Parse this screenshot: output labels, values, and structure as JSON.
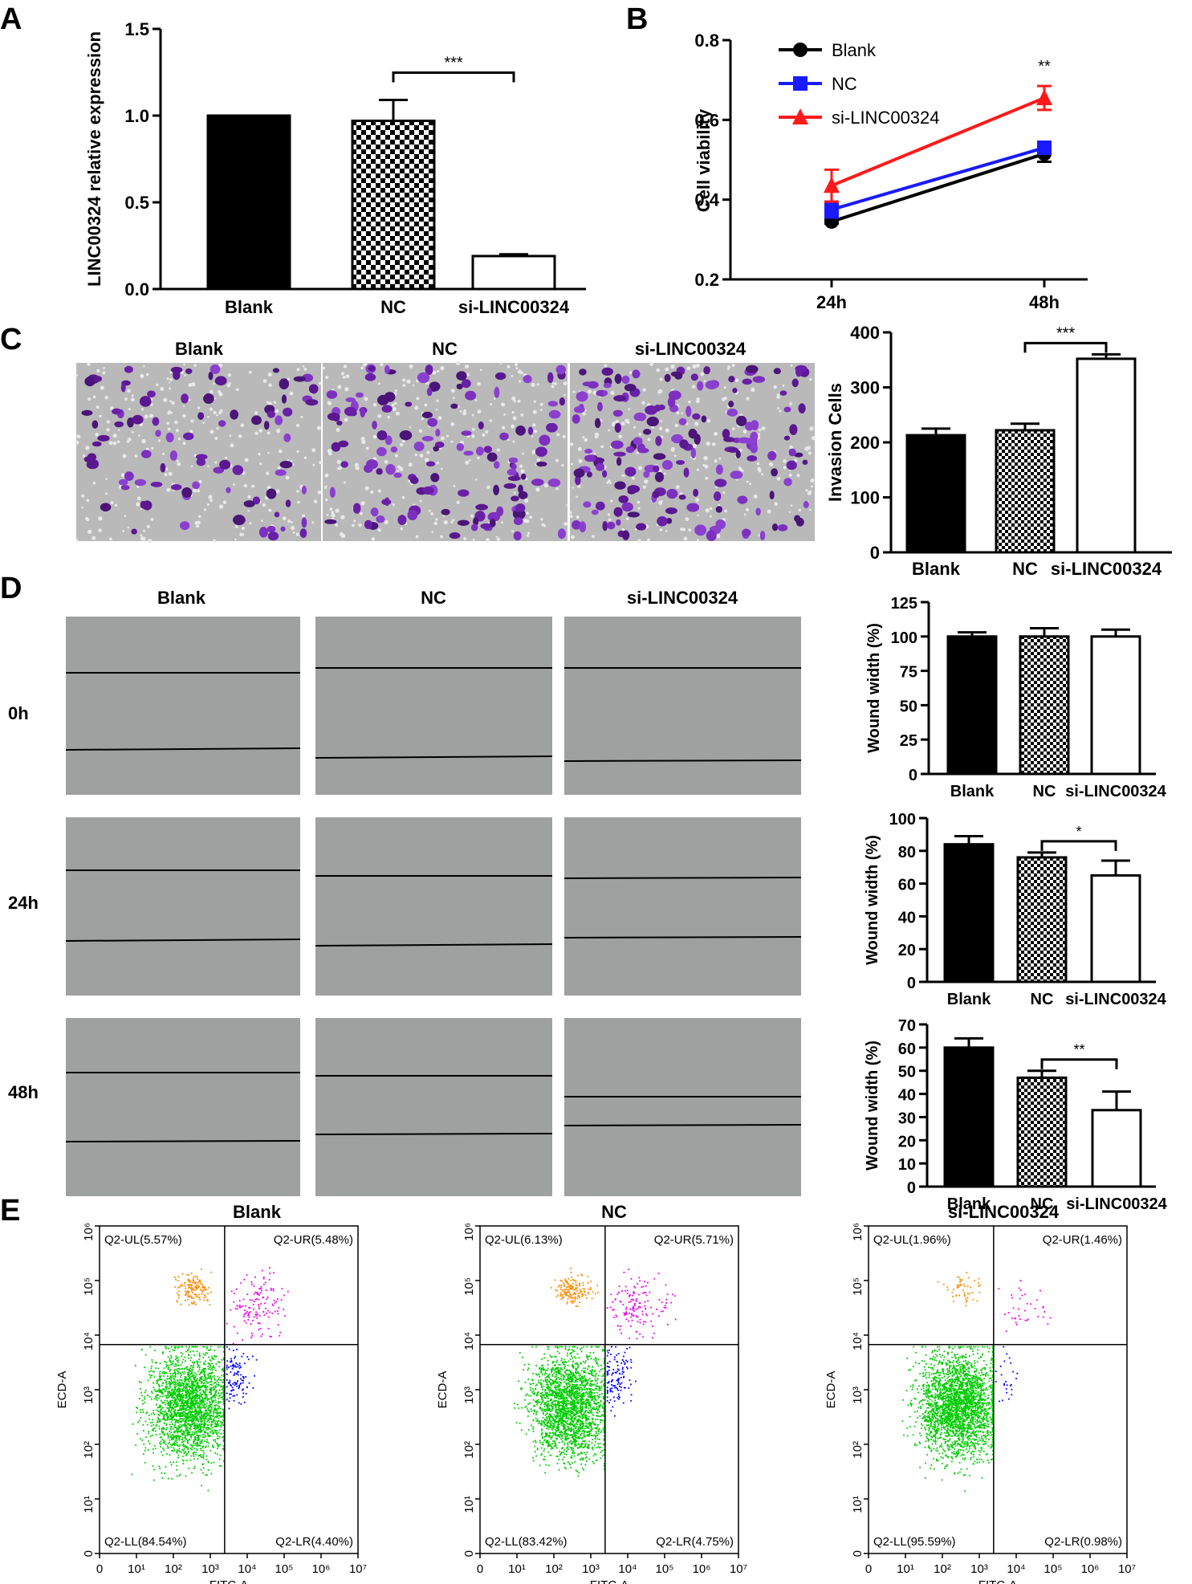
{
  "panels": {
    "A": "A",
    "B": "B",
    "C": "C",
    "D": "D",
    "E": "E"
  },
  "chart_data": [
    {
      "id": "A",
      "type": "bar",
      "categories": [
        "Blank",
        "NC",
        "si-LINC00324"
      ],
      "values": [
        1.0,
        0.97,
        0.19
      ],
      "errors": [
        0,
        0.12,
        0.01
      ],
      "patterns": [
        "solid",
        "checker",
        "open"
      ],
      "ylabel": "LINC00324 relative expression",
      "ylim": [
        0,
        1.5
      ],
      "yticks": [
        "0.0",
        "0.5",
        "1.0",
        "1.5"
      ],
      "significance": [
        {
          "from": 1,
          "to": 2,
          "label": "***"
        }
      ]
    },
    {
      "id": "B",
      "type": "line",
      "categories": [
        "24h",
        "48h"
      ],
      "ylabel": "Cell viability",
      "ylim": [
        0.2,
        0.8
      ],
      "yticks": [
        "0.2",
        "0.4",
        "0.6",
        "0.8"
      ],
      "legend_position": "top-left",
      "series": [
        {
          "name": "Blank",
          "color": "#000000",
          "marker": "circle",
          "values": [
            0.345,
            0.515
          ],
          "errors": [
            0.005,
            0.02
          ]
        },
        {
          "name": "NC",
          "color": "#1a1aff",
          "marker": "square",
          "values": [
            0.375,
            0.53
          ],
          "errors": [
            0.02,
            0.015
          ]
        },
        {
          "name": "si-LINC00324",
          "color": "#ff1a1a",
          "marker": "triangle",
          "values": [
            0.435,
            0.655
          ],
          "errors": [
            0.04,
            0.03
          ]
        }
      ],
      "annotations": [
        {
          "category": 1,
          "label": "**"
        }
      ]
    },
    {
      "id": "C",
      "type": "bar",
      "categories": [
        "Blank",
        "NC",
        "si-LINC00324"
      ],
      "values": [
        213,
        222,
        352
      ],
      "errors": [
        12,
        12,
        8
      ],
      "patterns": [
        "solid",
        "checker",
        "open"
      ],
      "ylabel": "Invasion Cells",
      "ylim": [
        0,
        400
      ],
      "yticks": [
        "0",
        "100",
        "200",
        "300",
        "400"
      ],
      "significance": [
        {
          "from": 1,
          "to": 2,
          "label": "***"
        }
      ]
    },
    {
      "id": "D0",
      "type": "bar",
      "categories": [
        "Blank",
        "NC",
        "si-LINC00324"
      ],
      "values": [
        100,
        100,
        100
      ],
      "errors": [
        3,
        6,
        5
      ],
      "patterns": [
        "solid",
        "checker",
        "open"
      ],
      "ylabel": "Wound width (%)",
      "ylim": [
        0,
        125
      ],
      "yticks": [
        "0",
        "25",
        "50",
        "75",
        "100",
        "125"
      ],
      "significance": []
    },
    {
      "id": "D24",
      "type": "bar",
      "categories": [
        "Blank",
        "NC",
        "si-LINC00324"
      ],
      "values": [
        84,
        76,
        65
      ],
      "errors": [
        5,
        3,
        9
      ],
      "patterns": [
        "solid",
        "checker",
        "open"
      ],
      "ylabel": "Wound width (%)",
      "ylim": [
        0,
        100
      ],
      "yticks": [
        "0",
        "20",
        "40",
        "60",
        "80",
        "100"
      ],
      "significance": [
        {
          "from": 1,
          "to": 2,
          "label": "*"
        }
      ]
    },
    {
      "id": "D48",
      "type": "bar",
      "categories": [
        "Blank",
        "NC",
        "si-LINC00324"
      ],
      "values": [
        60,
        47,
        33
      ],
      "errors": [
        4,
        3,
        8
      ],
      "patterns": [
        "solid",
        "checker",
        "open"
      ],
      "ylabel": "Wound width (%)",
      "ylim": [
        0,
        70
      ],
      "yticks": [
        "0",
        "10",
        "20",
        "30",
        "40",
        "50",
        "60",
        "70"
      ],
      "significance": [
        {
          "from": 1,
          "to": 2,
          "label": "**"
        }
      ]
    },
    {
      "id": "E",
      "type": "scatter",
      "xlabel": "FITC-A",
      "ylabel": "ECD-A",
      "xticks": [
        "0",
        "10¹",
        "10²",
        "10³",
        "10⁴",
        "10⁵",
        "10⁶",
        "10⁷"
      ],
      "yticks": [
        "0",
        "10¹",
        "10²",
        "10³",
        "10⁴",
        "10⁵",
        "10⁶"
      ],
      "quadrant_colors": {
        "UL": "#ff8c00",
        "UR": "#ee00ee",
        "LL": "#00cc00",
        "LR": "#0000ff"
      },
      "plots": [
        {
          "title": "Blank",
          "UL": "Q2-UL(5.57%)",
          "UR": "Q2-UR(5.48%)",
          "LL": "Q2-LL(84.54%)",
          "LR": "Q2-LR(4.40%)",
          "fractions": [
            0.0557,
            0.0548,
            0.8454,
            0.044
          ]
        },
        {
          "title": "NC",
          "UL": "Q2-UL(6.13%)",
          "UR": "Q2-UR(5.71%)",
          "LL": "Q2-LL(83.42%)",
          "LR": "Q2-LR(4.75%)",
          "fractions": [
            0.0613,
            0.0571,
            0.8342,
            0.0475
          ]
        },
        {
          "title": "si-LINC00324",
          "UL": "Q2-UL(1.96%)",
          "UR": "Q2-UR(1.46%)",
          "LL": "Q2-LL(95.59%)",
          "LR": "Q2-LR(0.98%)",
          "fractions": [
            0.0196,
            0.0146,
            0.9559,
            0.0098
          ]
        }
      ]
    }
  ],
  "panelC": {
    "image_titles": [
      "Blank",
      "NC",
      "si-LINC00324"
    ]
  },
  "panelD": {
    "column_titles": [
      "Blank",
      "NC",
      "si-LINC00324"
    ],
    "row_labels": [
      "0h",
      "24h",
      "48h"
    ]
  }
}
